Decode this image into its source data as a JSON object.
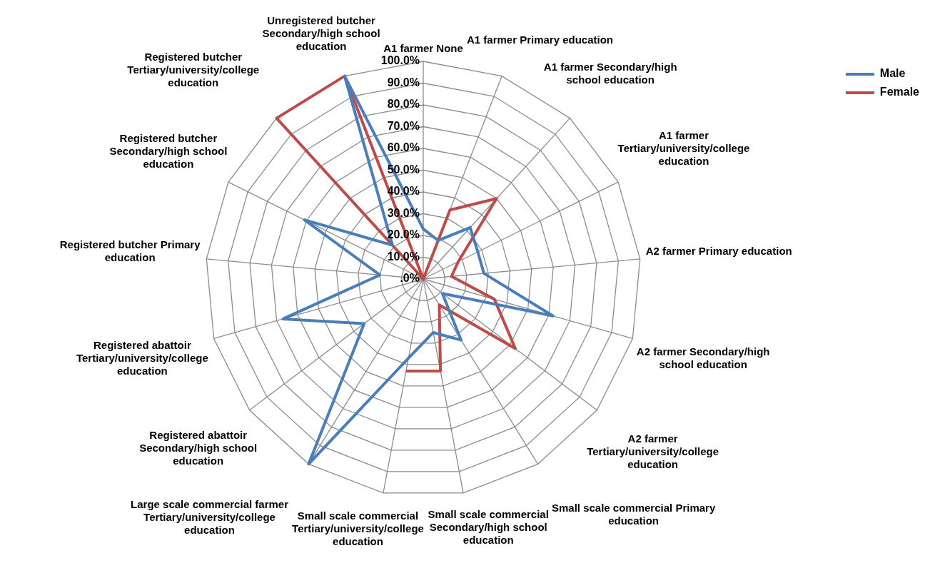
{
  "chart_data": {
    "type": "radar",
    "categories": [
      "A1 farmer None",
      "A1 farmer Primary education",
      "A1 farmer Secondary/high school education",
      "A1 farmer Tertiary/university/college education",
      "A2 farmer Primary education",
      "A2 farmer Secondary/high school education",
      "A2 farmer Tertiary/university/college education",
      "Small scale commercial Primary education",
      "Small scale commercial Secondary/high school education",
      "Small scale commercial Tertiary/university/college education",
      "Large scale commercial farmer Tertiary/university/college education",
      "Registered abattoir Secondary/high school education",
      "Registered abattoir Tertiary/university/college education",
      "Registered butcher Primary education",
      "Registered butcher Secondary/high school education",
      "Registered butcher Tertiary/university/college education",
      "Unregistered butcher Secondary/high school education"
    ],
    "series": [
      {
        "name": "Male",
        "color": "#4a7ebb",
        "values": [
          23,
          19,
          32,
          28,
          28,
          62,
          11,
          33,
          25,
          37,
          100,
          34,
          67,
          20,
          61,
          21,
          100
        ]
      },
      {
        "name": "Female",
        "color": "#be4b48",
        "values": [
          0,
          34,
          50,
          18,
          13,
          34,
          53,
          14,
          43,
          43,
          null,
          null,
          null,
          null,
          0,
          100,
          100
        ]
      }
    ],
    "ylim": [
      0,
      100
    ],
    "yticks": [
      {
        "value": 0,
        "label": ".0%"
      },
      {
        "value": 10,
        "label": "10.0%"
      },
      {
        "value": 20,
        "label": "20.0%"
      },
      {
        "value": 30,
        "label": "30.0%"
      },
      {
        "value": 40,
        "label": "40.0%"
      },
      {
        "value": 50,
        "label": "50.0%"
      },
      {
        "value": 60,
        "label": "60.0%"
      },
      {
        "value": 70,
        "label": "70.0%"
      },
      {
        "value": 80,
        "label": "80.0%"
      },
      {
        "value": 90,
        "label": "90.0%"
      },
      {
        "value": 100,
        "label": "100.0%"
      }
    ],
    "grid": true,
    "legend": "top right",
    "marker": "none",
    "line_style": "solid"
  }
}
